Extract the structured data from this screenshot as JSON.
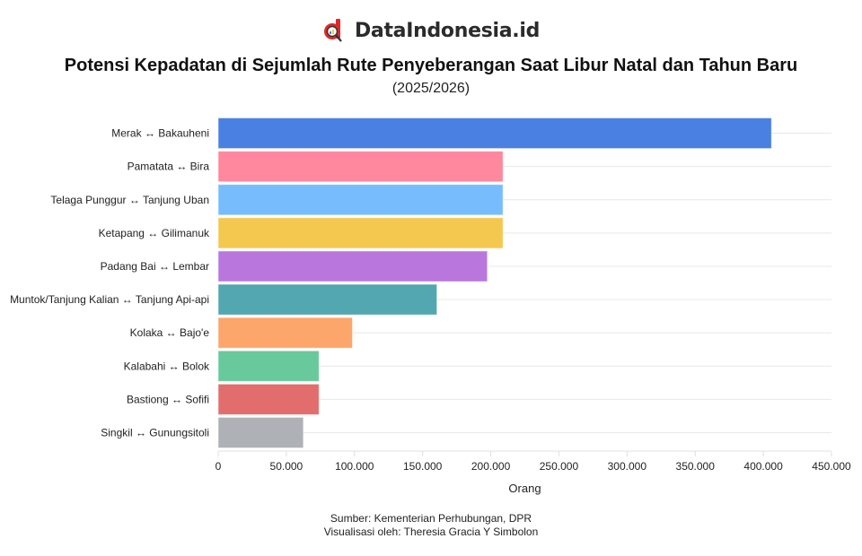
{
  "brand": {
    "name": "DataIndonesia.id",
    "logo_icon": "d-magnifier-logo",
    "logo_color": "#e0292b"
  },
  "chart_data": {
    "type": "bar",
    "orientation": "horizontal",
    "title": "Potensi Kepadatan di Sejumlah Rute Penyeberangan Saat Libur Natal dan Tahun Baru",
    "subtitle": "(2025/2026)",
    "xlabel": "Orang",
    "ylabel": "",
    "xlim": [
      0,
      450000
    ],
    "xticks": [
      0,
      50000,
      100000,
      150000,
      200000,
      250000,
      300000,
      350000,
      400000,
      450000
    ],
    "xtick_labels": [
      "0",
      "50.000",
      "100.000",
      "150.000",
      "200.000",
      "250.000",
      "300.000",
      "350.000",
      "400.000",
      "450.000"
    ],
    "grid": true,
    "categories": [
      "Merak ↔ Bakauheni",
      "Pamatata ↔ Bira",
      "Telaga Punggur ↔ Tanjung Uban",
      "Ketapang ↔ Gilimanuk",
      "Padang Bai ↔ Lembar",
      "Muntok/Tanjung Kalian ↔ Tanjung Api-api",
      "Kolaka ↔ Bajo'e",
      "Kalabahi ↔ Bolok",
      "Bastiong ↔ Sofifi",
      "Singkil ↔ Gunungsitoli"
    ],
    "values": [
      406000,
      209000,
      209000,
      209000,
      197500,
      160500,
      98500,
      74000,
      74000,
      62500
    ],
    "colors": [
      "#4a80e2",
      "#ff879e",
      "#77bdfd",
      "#f4c84f",
      "#b977dd",
      "#52a7b0",
      "#fca66c",
      "#68c99d",
      "#e26d6d",
      "#aeb1b6"
    ]
  },
  "footer": {
    "source": "Sumber: Kementerian Perhubungan, DPR",
    "credit": "Visualisasi oleh: Theresia Gracia Y Simbolon"
  }
}
